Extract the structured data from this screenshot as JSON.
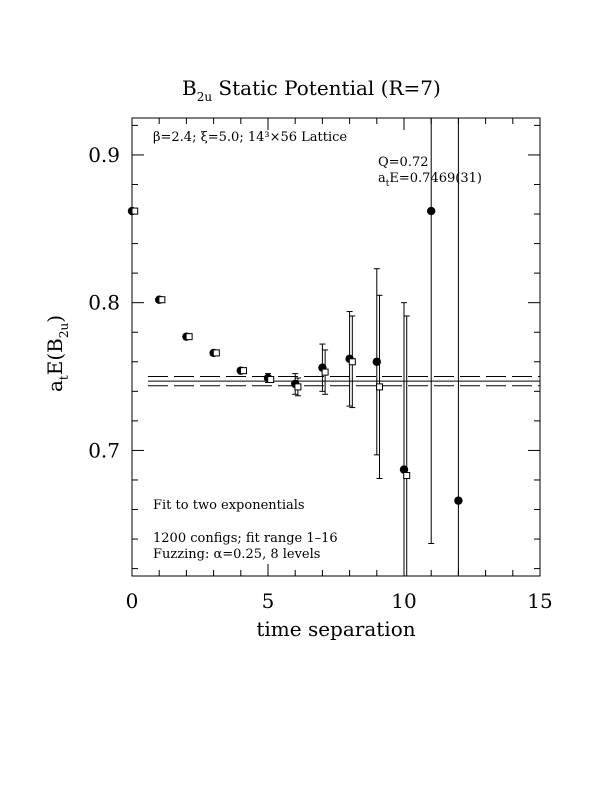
{
  "chart_data": {
    "type": "scatter",
    "title": "B",
    "title_sub": "2u",
    "title_rest": " Static Potential (R=7)",
    "xlabel": "time separation",
    "ylabel_main": "a",
    "ylabel_sub1": "t",
    "ylabel_mid": "E(B",
    "ylabel_sub2": "2u",
    "ylabel_end": ")",
    "xlim": [
      0,
      15
    ],
    "ylim": [
      0.615,
      0.925
    ],
    "x_ticks": [
      0,
      5,
      10,
      15
    ],
    "x_tick_labels": [
      "0",
      "5",
      "10",
      "15"
    ],
    "y_ticks": [
      0.7,
      0.8,
      0.9
    ],
    "y_tick_labels": [
      "0.7",
      "0.8",
      "0.9"
    ],
    "grid": false,
    "annotations": {
      "lattice": "β=2.4; ξ=5.0; 14³×56 Lattice",
      "q": "Q=0.72",
      "energy_main": "a",
      "energy_sub": "t",
      "energy_rest": "E=0.7469(31)",
      "fit_desc": "Fit to two exponentials",
      "configs": "1200 configs; fit range 1–16",
      "fuzzing": "Fuzzing: α=0.25, 8 levels"
    },
    "fit": {
      "value": 0.7469,
      "error": 0.0031,
      "color": "#000000"
    },
    "series": [
      {
        "marker": "filled-circle",
        "points": [
          {
            "x": 0,
            "y": 0.862,
            "err": 0.001
          },
          {
            "x": 1,
            "y": 0.802,
            "err": 0.001
          },
          {
            "x": 2,
            "y": 0.777,
            "err": 0.001
          },
          {
            "x": 3,
            "y": 0.766,
            "err": 0.001
          },
          {
            "x": 4,
            "y": 0.754,
            "err": 0.001
          },
          {
            "x": 5,
            "y": 0.749,
            "err": 0.003
          },
          {
            "x": 6,
            "y": 0.745,
            "err": 0.007
          },
          {
            "x": 7,
            "y": 0.756,
            "err": 0.016
          },
          {
            "x": 8,
            "y": 0.762,
            "err": 0.032
          },
          {
            "x": 9,
            "y": 0.76,
            "err": 0.063
          },
          {
            "x": 10,
            "y": 0.687,
            "err": 0.113
          },
          {
            "x": 11,
            "y": 0.862,
            "err": 0.225
          },
          {
            "x": 12,
            "y": 0.666,
            "err": 0.311
          }
        ]
      },
      {
        "marker": "open-square",
        "points": [
          {
            "x": 0.1,
            "y": 0.862,
            "err": 0.001
          },
          {
            "x": 1.1,
            "y": 0.802,
            "err": 0.001
          },
          {
            "x": 2.1,
            "y": 0.777,
            "err": 0.001
          },
          {
            "x": 3.1,
            "y": 0.766,
            "err": 0.001
          },
          {
            "x": 4.1,
            "y": 0.754,
            "err": 0.001
          },
          {
            "x": 5.1,
            "y": 0.748,
            "err": 0.002
          },
          {
            "x": 6.1,
            "y": 0.743,
            "err": 0.006
          },
          {
            "x": 7.1,
            "y": 0.753,
            "err": 0.015
          },
          {
            "x": 8.1,
            "y": 0.76,
            "err": 0.031
          },
          {
            "x": 9.1,
            "y": 0.743,
            "err": 0.062
          },
          {
            "x": 10.1,
            "y": 0.683,
            "err": 0.108
          }
        ]
      }
    ]
  }
}
